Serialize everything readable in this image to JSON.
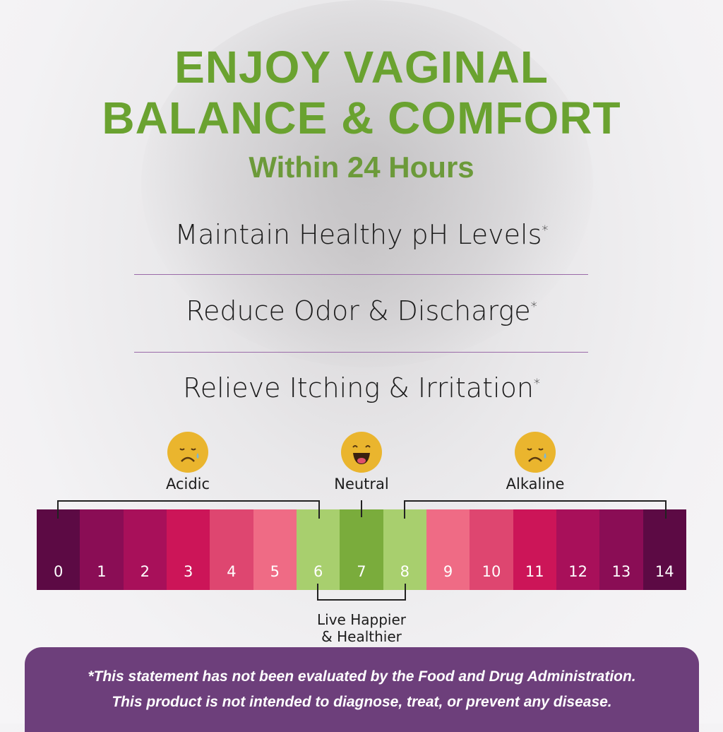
{
  "headline": {
    "line1": "ENJOY VAGINAL",
    "line2": "BALANCE & COMFORT",
    "subline": "Within 24 Hours"
  },
  "benefits": [
    {
      "text": "Maintain Healthy pH Levels",
      "mark": "*"
    },
    {
      "text": "Reduce Odor & Discharge",
      "mark": "*"
    },
    {
      "text": "Relieve Itching & Irritation",
      "mark": "*"
    }
  ],
  "ph_scale": {
    "zones": [
      {
        "label": "Acidic",
        "icon": "sad-crying-face-icon"
      },
      {
        "label": "Neutral",
        "icon": "laughing-face-icon"
      },
      {
        "label": "Alkaline",
        "icon": "sad-crying-face-icon"
      }
    ],
    "values": [
      "0",
      "1",
      "2",
      "3",
      "4",
      "5",
      "6",
      "7",
      "8",
      "9",
      "10",
      "11",
      "12",
      "13",
      "14"
    ],
    "colors": [
      "#5c0a44",
      "#8a0d55",
      "#a8105a",
      "#cc1558",
      "#de4670",
      "#ef6b85",
      "#a8cf6e",
      "#7aac3c",
      "#a8cf6e",
      "#ef6b85",
      "#de4670",
      "#cc1558",
      "#a8105a",
      "#8a0d55",
      "#5c0a44"
    ],
    "healthy_range_label_1": "Live Happier",
    "healthy_range_label_2": "& Healthier"
  },
  "disclaimer": {
    "line1": "*This statement has not been evaluated by the Food and Drug Administration.",
    "line2": "This product is not intended to diagnose, treat, or prevent any disease."
  },
  "colors": {
    "headline_green": "#6aa230",
    "footer_purple": "#6d3f7b",
    "emoji_yellow": "#eab52e"
  }
}
